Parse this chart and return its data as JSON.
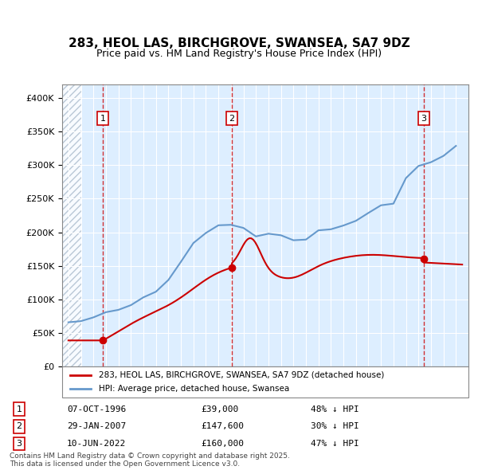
{
  "title": "283, HEOL LAS, BIRCHGROVE, SWANSEA, SA7 9DZ",
  "subtitle": "Price paid vs. HM Land Registry's House Price Index (HPI)",
  "legend_line1": "283, HEOL LAS, BIRCHGROVE, SWANSEA, SA7 9DZ (detached house)",
  "legend_line2": "HPI: Average price, detached house, Swansea",
  "footer": "Contains HM Land Registry data © Crown copyright and database right 2025.\nThis data is licensed under the Open Government Licence v3.0.",
  "transactions": [
    {
      "label": "1",
      "date": "07-OCT-1996",
      "price": 39000,
      "hpi_note": "48% ↓ HPI",
      "x": 1996.77
    },
    {
      "label": "2",
      "date": "29-JAN-2007",
      "price": 147600,
      "hpi_note": "30% ↓ HPI",
      "x": 2007.08
    },
    {
      "label": "3",
      "date": "10-JUN-2022",
      "price": 160000,
      "hpi_note": "47% ↓ HPI",
      "x": 2022.44
    }
  ],
  "hpi_color": "#6699cc",
  "price_color": "#cc0000",
  "vline_color": "#cc0000",
  "background_color": "#ddeeff",
  "hatch_color": "#bbccdd",
  "ylim": [
    0,
    420000
  ],
  "xlim": [
    1993.5,
    2026.0
  ],
  "yticks": [
    0,
    50000,
    100000,
    150000,
    200000,
    250000,
    300000,
    350000,
    400000
  ],
  "ytick_labels": [
    "£0",
    "£50K",
    "£100K",
    "£150K",
    "£200K",
    "£250K",
    "£300K",
    "£350K",
    "£400K"
  ]
}
